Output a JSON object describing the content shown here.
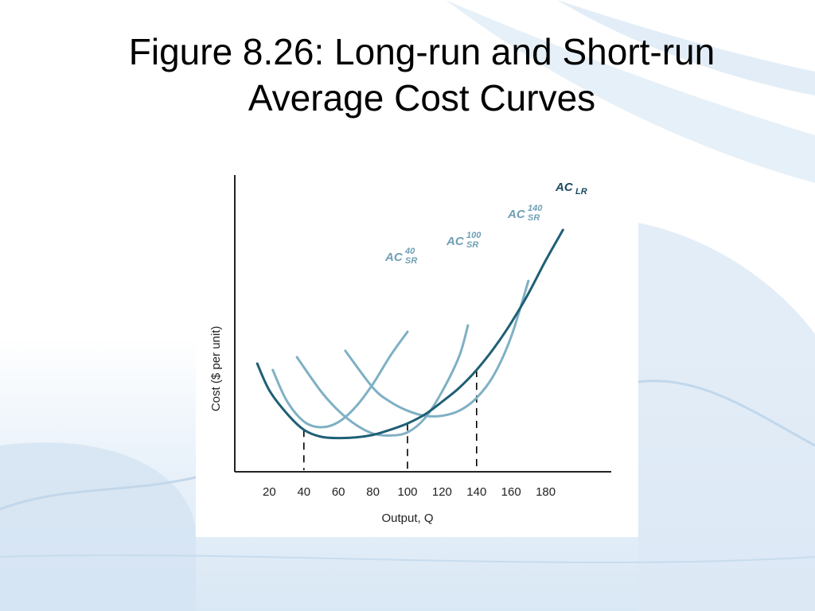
{
  "slide": {
    "title": "Figure 8.26: Long-run and Short-run Average Cost Curves"
  },
  "colors": {
    "long_run": "#1f5f75",
    "short_run": "#7fb0c4",
    "label_long_run": "#1a4a60",
    "label_short_run": "#6f9fb5",
    "axis": "#222222"
  },
  "chart_data": {
    "type": "line",
    "title": "",
    "xlabel": "Output, Q",
    "ylabel": "Cost ($ per unit)",
    "xlim": [
      0,
      210
    ],
    "x_ticks": [
      20,
      40,
      60,
      80,
      100,
      120,
      140,
      160,
      180
    ],
    "reference_lines_x": [
      40,
      100,
      140
    ],
    "series": [
      {
        "name": "AC_LR",
        "label_main": "AC",
        "label_sup": "",
        "label_sub": "LR",
        "x": [
          13,
          20,
          30,
          40,
          50,
          60,
          70,
          80,
          90,
          100,
          110,
          120,
          130,
          140,
          150,
          160,
          170,
          180,
          190
        ],
        "y": [
          8.5,
          6.4,
          4.6,
          3.3,
          2.75,
          2.65,
          2.7,
          2.9,
          3.3,
          3.8,
          4.5,
          5.5,
          6.6,
          8.0,
          9.7,
          11.7,
          14.0,
          16.6,
          19.0
        ]
      },
      {
        "name": "AC_SR^40",
        "label_main": "AC",
        "label_sup": "40",
        "label_sub": "SR",
        "x": [
          22,
          30,
          40,
          50,
          60,
          70,
          80,
          90,
          100
        ],
        "y": [
          8.0,
          5.6,
          3.95,
          3.5,
          3.9,
          5.1,
          6.9,
          9.1,
          11.0
        ]
      },
      {
        "name": "AC_SR^100",
        "label_main": "AC",
        "label_sup": "100",
        "label_sub": "SR",
        "x": [
          36,
          50,
          60,
          70,
          80,
          90,
          100,
          110,
          120,
          130,
          135
        ],
        "y": [
          9.0,
          6.3,
          4.8,
          3.7,
          3.0,
          2.85,
          3.1,
          4.2,
          6.3,
          9.1,
          11.5
        ]
      },
      {
        "name": "AC_SR^140",
        "label_main": "AC",
        "label_sup": "140",
        "label_sub": "SR",
        "x": [
          64,
          80,
          90,
          100,
          110,
          120,
          130,
          140,
          150,
          160,
          170
        ],
        "y": [
          9.5,
          6.6,
          5.5,
          4.8,
          4.4,
          4.4,
          4.8,
          5.8,
          7.6,
          10.6,
          15.0
        ]
      }
    ]
  }
}
